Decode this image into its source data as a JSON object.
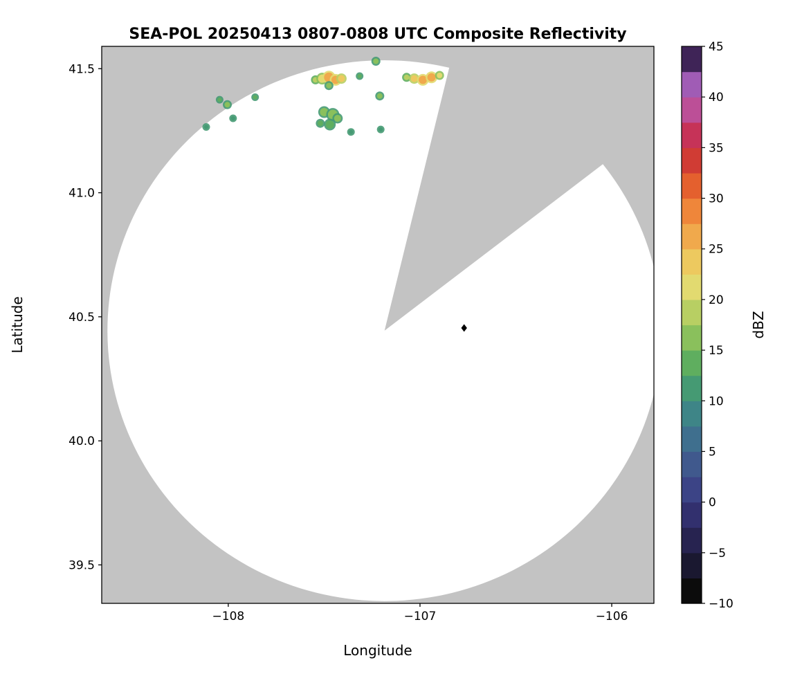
{
  "chart_data": {
    "type": "radar_ppi_map",
    "title": "SEA-POL 20250413 0807-0808 UTC Composite Reflectivity",
    "xlabel": "Longitude",
    "ylabel": "Latitude",
    "xlim": [
      -108.66,
      -105.78
    ],
    "ylim": [
      39.345,
      41.59
    ],
    "xticks": [
      {
        "value": -108,
        "label": "−108"
      },
      {
        "value": -107,
        "label": "−107"
      },
      {
        "value": -106,
        "label": "−106"
      }
    ],
    "yticks": [
      {
        "value": 39.5,
        "label": "39.5"
      },
      {
        "value": 40.0,
        "label": "40.0"
      },
      {
        "value": 40.5,
        "label": "40.5"
      },
      {
        "value": 41.0,
        "label": "41.0"
      },
      {
        "value": 41.5,
        "label": "41.5"
      }
    ],
    "grid": false,
    "outside_coverage_color": "#c3c3c3",
    "coverage": {
      "center": [
        -107.185,
        40.444
      ],
      "radius_deg_lon": 1.445,
      "radius_deg_lat": 1.09,
      "missing_sector_azimuth_deg": [
        13.5,
        52
      ],
      "fill": "#ffffff"
    },
    "radar_marker": {
      "lon": -106.77,
      "lat": 40.455,
      "shape": "diamond",
      "color": "#000000"
    },
    "echo_fields": [
      "longitude",
      "latitude",
      "dbz",
      "radius_px"
    ],
    "echoes": [
      [
        -107.545,
        41.455,
        18,
        4
      ],
      [
        -107.51,
        41.46,
        22,
        6
      ],
      [
        -107.475,
        41.465,
        25,
        7
      ],
      [
        -107.44,
        41.455,
        26,
        6
      ],
      [
        -107.41,
        41.46,
        23,
        5
      ],
      [
        -107.475,
        41.432,
        17,
        4
      ],
      [
        -107.07,
        41.465,
        19,
        4
      ],
      [
        -107.03,
        41.46,
        23,
        5
      ],
      [
        -106.985,
        41.455,
        26,
        6
      ],
      [
        -106.94,
        41.465,
        27,
        6
      ],
      [
        -106.898,
        41.473,
        22,
        4
      ],
      [
        -107.5,
        41.325,
        15,
        6
      ],
      [
        -107.455,
        41.315,
        17,
        7
      ],
      [
        -107.47,
        41.275,
        14,
        6
      ],
      [
        -107.43,
        41.3,
        16,
        5
      ],
      [
        -107.52,
        41.28,
        13,
        4
      ],
      [
        -107.23,
        41.53,
        15,
        4
      ],
      [
        -107.21,
        41.39,
        16,
        4
      ],
      [
        -107.205,
        41.255,
        11,
        3
      ],
      [
        -108.045,
        41.375,
        14,
        3
      ],
      [
        -108.005,
        41.355,
        16,
        4
      ],
      [
        -107.975,
        41.3,
        12,
        3
      ],
      [
        -108.115,
        41.265,
        12,
        3
      ],
      [
        -107.86,
        41.385,
        13,
        3
      ],
      [
        -107.36,
        41.245,
        12,
        3
      ],
      [
        -107.315,
        41.47,
        13,
        3
      ]
    ],
    "colorbar": {
      "label": "dBZ",
      "min": -10,
      "max": 45,
      "step": 2.5,
      "ticks": [
        {
          "value": -10,
          "label": "−10"
        },
        {
          "value": -5,
          "label": "−5"
        },
        {
          "value": 0,
          "label": "0"
        },
        {
          "value": 5,
          "label": "5"
        },
        {
          "value": 10,
          "label": "10"
        },
        {
          "value": 15,
          "label": "15"
        },
        {
          "value": 20,
          "label": "20"
        },
        {
          "value": 25,
          "label": "25"
        },
        {
          "value": 30,
          "label": "30"
        },
        {
          "value": 35,
          "label": "35"
        },
        {
          "value": 40,
          "label": "40"
        },
        {
          "value": 45,
          "label": "45"
        }
      ],
      "colors": [
        "#0c0c0c",
        "#1a1830",
        "#272350",
        "#32306e",
        "#3c4486",
        "#40598d",
        "#3f6f8e",
        "#3e8587",
        "#459a73",
        "#5fae5f",
        "#8ac05c",
        "#b8cf63",
        "#e2da70",
        "#edc95f",
        "#f0a94c",
        "#ef863a",
        "#e4602e",
        "#d03c34",
        "#c63358",
        "#bc4f97",
        "#a05cb5",
        "#3f2457"
      ]
    }
  }
}
